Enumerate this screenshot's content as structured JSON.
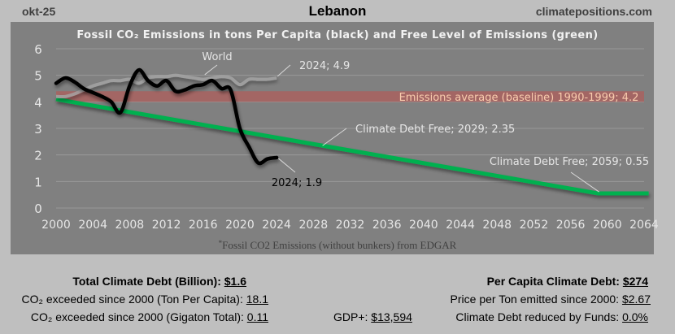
{
  "header": {
    "date": "okt-25",
    "country": "Lebanon",
    "site": "climatepositions.com"
  },
  "chart_data": {
    "type": "line",
    "title": "Fossil CO₂ Emissions in tons Per Capita (black) and Free Level of Emissions (green)",
    "footnote": "*Fossil CO2 Emissions (without bunkers) from EDGAR",
    "xlabel": "",
    "ylabel": "",
    "xlim": [
      2000,
      2065
    ],
    "ylim": [
      0,
      6
    ],
    "yticks": [
      "0",
      "1",
      "2",
      "3",
      "4",
      "5",
      "6"
    ],
    "xticks": [
      "2000",
      "2004",
      "2008",
      "2012",
      "2016",
      "2020",
      "2024",
      "2028",
      "2032",
      "2036",
      "2040",
      "2044",
      "2048",
      "2052",
      "2056",
      "2060",
      "2064"
    ],
    "grid": true,
    "series": [
      {
        "name": "Lebanon emissions per capita",
        "color": "#000000",
        "x": [
          2000,
          2001,
          2002,
          2003,
          2004,
          2005,
          2006,
          2007,
          2008,
          2009,
          2010,
          2011,
          2012,
          2013,
          2014,
          2015,
          2016,
          2017,
          2018,
          2019,
          2020,
          2021,
          2022,
          2023,
          2024
        ],
        "values": [
          4.7,
          4.9,
          4.75,
          4.5,
          4.35,
          4.2,
          4.0,
          3.6,
          4.6,
          5.2,
          4.8,
          4.6,
          4.8,
          4.4,
          4.45,
          4.6,
          4.65,
          4.8,
          4.5,
          4.45,
          3.0,
          2.3,
          1.7,
          1.85,
          1.9
        ]
      },
      {
        "name": "World",
        "color": "#a6a6a6",
        "x": [
          2000,
          2001,
          2002,
          2003,
          2004,
          2005,
          2006,
          2007,
          2008,
          2009,
          2010,
          2011,
          2012,
          2013,
          2014,
          2015,
          2016,
          2017,
          2018,
          2019,
          2020,
          2021,
          2022,
          2023,
          2024
        ],
        "values": [
          4.2,
          4.2,
          4.3,
          4.45,
          4.6,
          4.7,
          4.8,
          4.8,
          4.85,
          4.7,
          4.9,
          4.95,
          4.95,
          5.0,
          4.95,
          4.9,
          4.85,
          4.9,
          4.95,
          4.9,
          4.65,
          4.85,
          4.85,
          4.85,
          4.9
        ]
      },
      {
        "name": "Free Level of Emissions",
        "color": "#00b050",
        "x": [
          2000,
          2029,
          2059,
          2065
        ],
        "values": [
          4.1,
          2.35,
          0.55,
          0.55
        ]
      }
    ],
    "baseline": {
      "label": "Emissions average (baseline) 1990-1999; 4.2",
      "value": 4.2,
      "color": "#c0504d"
    },
    "annotations": [
      {
        "text": "World",
        "x": 2016,
        "y": 5.0
      },
      {
        "text": "2024; 4.9",
        "x": 2024,
        "y": 4.9
      },
      {
        "text": "2024; 1.9",
        "x": 2024,
        "y": 1.9
      },
      {
        "text": "Climate Debt Free; 2029; 2.35",
        "x": 2029,
        "y": 2.35
      },
      {
        "text": "Climate Debt Free; 2059; 0.55",
        "x": 2059,
        "y": 0.55
      }
    ]
  },
  "stats": {
    "total_debt_label": "Total Climate Debt (Billion):",
    "total_debt_value": "$1.6",
    "exceeded_per_capita_label": "CO₂ exceeded since 2000 (Ton Per Capita):",
    "exceeded_per_capita_value": "18.1",
    "exceeded_total_label": "CO₂ exceeded since 2000 (Gigaton Total):",
    "exceeded_total_value": "0.11",
    "gdp_label": "GDP+:",
    "gdp_value": "$13,594",
    "per_capita_debt_label": "Per Capita Climate Debt:",
    "per_capita_debt_value": "$274",
    "price_per_ton_label": "Price per Ton emitted since 2000:",
    "price_per_ton_value": "$2.67",
    "funds_label": "Climate Debt reduced by Funds:",
    "funds_value": "0.0%"
  }
}
